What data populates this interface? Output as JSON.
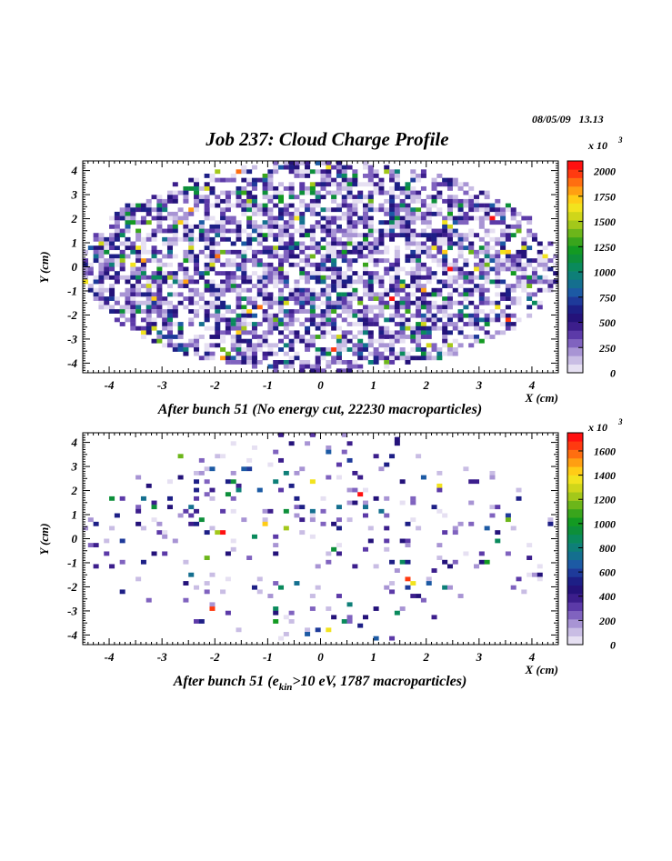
{
  "page": {
    "timestamp": "08/05/09   13.13",
    "title": "Job 237: Cloud Charge Profile"
  },
  "chart_data": [
    {
      "type": "heatmap",
      "title": "",
      "caption": "After bunch 51 (No energy cut, 22230 macroparticles)",
      "xlabel": "X (cm)",
      "ylabel": "Y (cm)",
      "xlim": [
        -4.5,
        4.5
      ],
      "ylim": [
        -4.4,
        4.4
      ],
      "x_ticks": [
        "-4",
        "-3",
        "-2",
        "-1",
        "0",
        "1",
        "2",
        "3",
        "4"
      ],
      "y_ticks": [
        "4",
        "3",
        "2",
        "1",
        "0",
        "-1",
        "-2",
        "-3",
        "-4"
      ],
      "colorbar": {
        "multiplier": "x 10",
        "exponent": "3",
        "range": [
          0,
          2100
        ],
        "ticks": [
          "2000",
          "1750",
          "1500",
          "1250",
          "1000",
          "750",
          "500",
          "250",
          "0"
        ]
      },
      "region": {
        "shape": "ellipse",
        "center": [
          0,
          0
        ],
        "semi_axes": [
          4.5,
          4.4
        ]
      },
      "occupancy": 0.62,
      "seed": 7
    },
    {
      "type": "heatmap",
      "title": "",
      "caption_pre": "After bunch 51 (e",
      "caption_sub": "kin",
      "caption_post": ">10 eV, 1787 macroparticles)",
      "xlabel": "X (cm)",
      "ylabel": "Y (cm)",
      "xlim": [
        -4.5,
        4.5
      ],
      "ylim": [
        -4.4,
        4.4
      ],
      "x_ticks": [
        "-4",
        "-3",
        "-2",
        "-1",
        "0",
        "1",
        "2",
        "3",
        "4"
      ],
      "y_ticks": [
        "4",
        "3",
        "2",
        "1",
        "0",
        "-1",
        "-2",
        "-3",
        "-4"
      ],
      "colorbar": {
        "multiplier": "x 10",
        "exponent": "3",
        "range": [
          0,
          1750
        ],
        "ticks": [
          "1600",
          "1400",
          "1200",
          "1000",
          "800",
          "600",
          "400",
          "200",
          "0"
        ]
      },
      "region": {
        "shape": "ellipse",
        "center": [
          0,
          0
        ],
        "semi_axes": [
          4.5,
          4.4
        ]
      },
      "occupancy": 0.075,
      "seed": 23
    }
  ],
  "palette": [
    "#ffffff",
    "#e6e0f2",
    "#c9bde4",
    "#a894d4",
    "#8063bf",
    "#5c3aa8",
    "#3c1e8c",
    "#24127a",
    "#1d1f86",
    "#1e3a9a",
    "#1c5aa4",
    "#146f8f",
    "#0e7f78",
    "#0a8a5c",
    "#0d8f3a",
    "#139a22",
    "#39a51c",
    "#6cb61a",
    "#a3c81a",
    "#cfd61a",
    "#f2e31e",
    "#ffcc16",
    "#ff9f12",
    "#ff6e10",
    "#ff3a10",
    "#ff1010"
  ]
}
